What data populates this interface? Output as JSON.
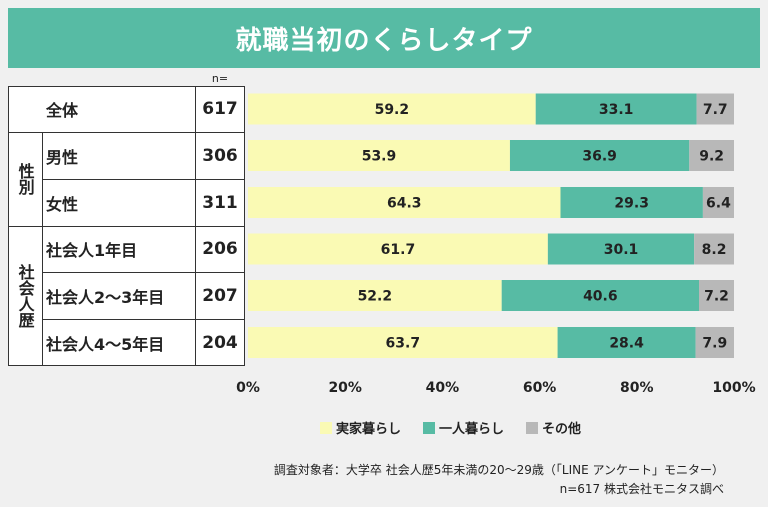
{
  "title": "就職当初のくらしタイプ",
  "n_header": "n=",
  "groups": [
    {
      "label": "性別"
    },
    {
      "label": "社会人歴"
    }
  ],
  "rows": [
    {
      "label": "全体",
      "n": "617"
    },
    {
      "label": "男性",
      "n": "306"
    },
    {
      "label": "女性",
      "n": "311"
    },
    {
      "label": "社会人1年目",
      "n": "206"
    },
    {
      "label": "社会人2～3年目",
      "n": "207"
    },
    {
      "label": "社会人4～5年目",
      "n": "204"
    }
  ],
  "colors": {
    "title_bg": "#57bba4",
    "jikka": "#fafab4",
    "hitori": "#57bba4",
    "sonota": "#b8b8b8"
  },
  "chart_data": {
    "type": "bar",
    "orientation": "horizontal",
    "stacked": "100%",
    "categories": [
      "全体",
      "男性",
      "女性",
      "社会人1年目",
      "社会人2～3年目",
      "社会人4～5年目"
    ],
    "series": [
      {
        "name": "実家暮らし",
        "values": [
          59.2,
          53.9,
          64.3,
          61.7,
          52.2,
          63.7
        ]
      },
      {
        "name": "一人暮らし",
        "values": [
          33.1,
          36.9,
          29.3,
          30.1,
          40.6,
          28.4
        ]
      },
      {
        "name": "その他",
        "values": [
          7.7,
          9.2,
          6.4,
          8.2,
          7.2,
          7.9
        ]
      }
    ],
    "xlim": [
      0,
      100
    ],
    "x_ticks": [
      "0%",
      "20%",
      "40%",
      "60%",
      "80%",
      "100%"
    ],
    "legend_position": "bottom"
  },
  "notes": {
    "line1": "調査対象者：大学卒 社会人歴5年未満の20～29歳（「LINE アンケート」モニター）",
    "line2": "n=617 株式会社モニタス調べ"
  }
}
